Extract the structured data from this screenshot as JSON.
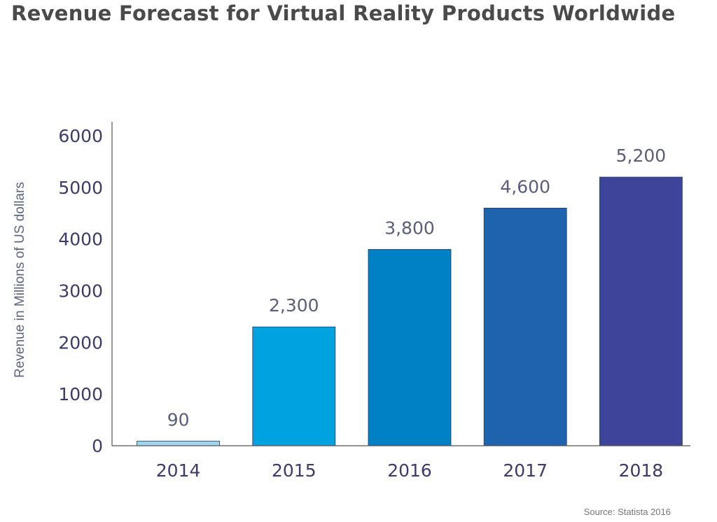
{
  "colors": {
    "axis": "#555555",
    "tick_text": "#3d3a6e",
    "label_text": "#5a5e7a",
    "ylabel_text": "#5b6580",
    "title_text": "#4a4a4a",
    "bar_stroke": "#2b3a5a"
  },
  "chart_data": {
    "type": "bar",
    "title": "Revenue Forecast for Virtual Reality Products Worldwide",
    "xlabel": "",
    "ylabel": "Revenue in Millions of US dollars",
    "categories": [
      "2014",
      "2015",
      "2016",
      "2017",
      "2018"
    ],
    "values": [
      90,
      2300,
      3800,
      4600,
      5200
    ],
    "value_labels": [
      "90",
      "2,300",
      "3,800",
      "4,600",
      "5,200"
    ],
    "bar_colors": [
      "#9fd4ee",
      "#00a3e0",
      "#0080c5",
      "#1f63af",
      "#3e449a"
    ],
    "ylim": [
      0,
      6000
    ],
    "yticks": [
      0,
      1000,
      2000,
      3000,
      4000,
      5000,
      6000
    ],
    "grid": false,
    "source": "Source: Statista 2016"
  }
}
